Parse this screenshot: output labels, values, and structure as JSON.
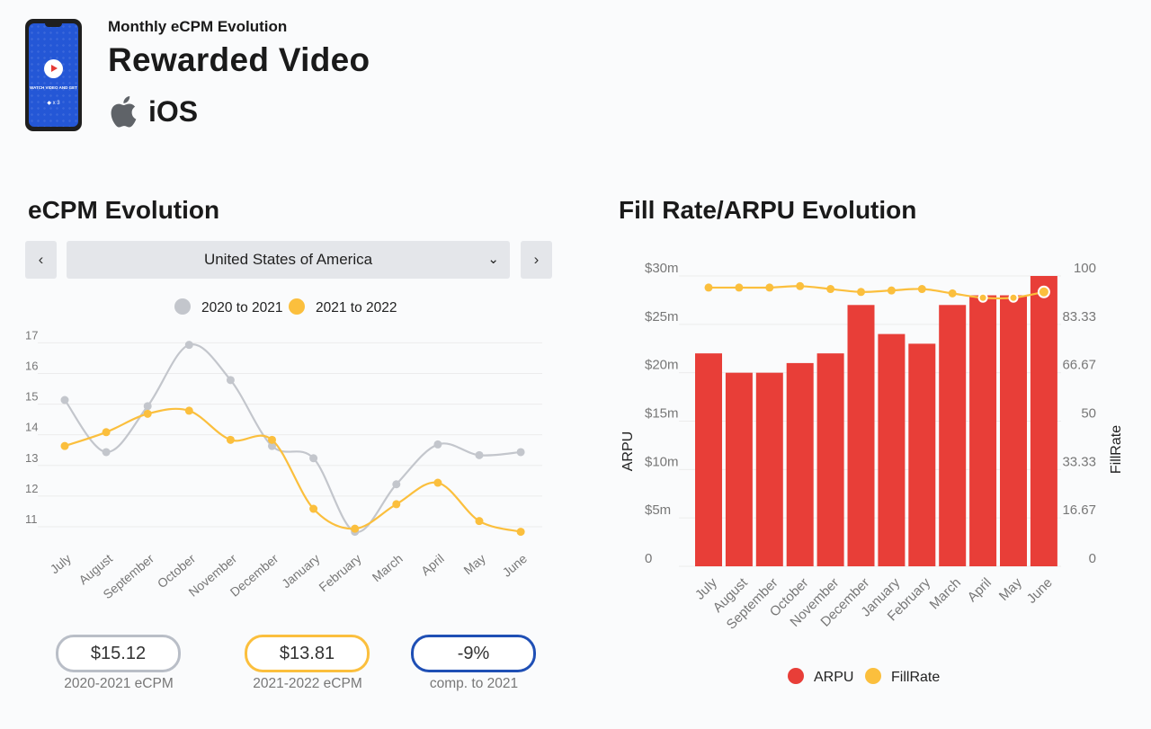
{
  "header": {
    "subtitle": "Monthly eCPM Evolution",
    "title": "Rewarded Video",
    "platform": "iOS",
    "platform_icon": "apple-icon",
    "thumbnail_text": "WATCH VIDEO AND GET",
    "thumbnail_count": "◆ x 3"
  },
  "ecpm_section": {
    "title": "eCPM Evolution",
    "prev_icon": "‹",
    "next_icon": "›",
    "dropdown_icon": "⌄",
    "country": "United States of America"
  },
  "fill_section": {
    "title": "Fill Rate/ARPU Evolution"
  },
  "stats": [
    {
      "value": "$15.12",
      "label": "2020-2021 eCPM",
      "color": "#b9bec7"
    },
    {
      "value": "$13.81",
      "label": "2021-2022 eCPM",
      "color": "#fbbf3d"
    },
    {
      "value": "-9%",
      "label": "comp. to 2021",
      "color": "#1f4fb5"
    }
  ],
  "chart_data": [
    {
      "type": "line",
      "categories": [
        "July",
        "August",
        "September",
        "October",
        "November",
        "December",
        "January",
        "February",
        "March",
        "April",
        "May",
        "June"
      ],
      "series": [
        {
          "name": "2020 to 2021",
          "color": "#c3c6cc",
          "values": [
            14.9,
            13.2,
            14.7,
            16.7,
            15.55,
            13.4,
            13.0,
            10.6,
            12.15,
            13.45,
            13.1,
            13.2
          ]
        },
        {
          "name": "2021 to 2022",
          "color": "#fbbf3d",
          "values": [
            13.4,
            13.85,
            14.45,
            14.55,
            13.6,
            13.6,
            11.35,
            10.7,
            11.5,
            12.2,
            10.95,
            10.6
          ]
        }
      ],
      "yticks": [
        11,
        12,
        13,
        14,
        15,
        16,
        17
      ],
      "ylim": [
        10.5,
        17.1
      ],
      "legend": "top",
      "grid": true
    },
    {
      "type": "bar",
      "categories": [
        "July",
        "August",
        "September",
        "October",
        "November",
        "December",
        "January",
        "February",
        "March",
        "April",
        "May",
        "June"
      ],
      "series": [
        {
          "name": "ARPU",
          "type": "bar",
          "axis": "left",
          "color": "#e83e38",
          "values": [
            22,
            20,
            20,
            21,
            22,
            27,
            24,
            23,
            27,
            28,
            28,
            30
          ]
        },
        {
          "name": "FillRate",
          "type": "line",
          "axis": "right",
          "color": "#fbbf3d",
          "values": [
            96,
            96,
            96,
            96.5,
            95.5,
            94.5,
            95,
            95.5,
            94,
            92.5,
            92.5,
            94.5
          ]
        }
      ],
      "ylabel": "ARPU",
      "y2label": "FillRate",
      "yticks": [
        "0",
        "$5m",
        "$10m",
        "$15m",
        "$20m",
        "$25m",
        "$30m"
      ],
      "ylim": [
        0,
        30
      ],
      "y2ticks": [
        "0",
        "16.67",
        "33.33",
        "50",
        "66.67",
        "83.33",
        "100"
      ],
      "y2lim": [
        0,
        100
      ],
      "legend": "bottom",
      "grid": true
    }
  ]
}
